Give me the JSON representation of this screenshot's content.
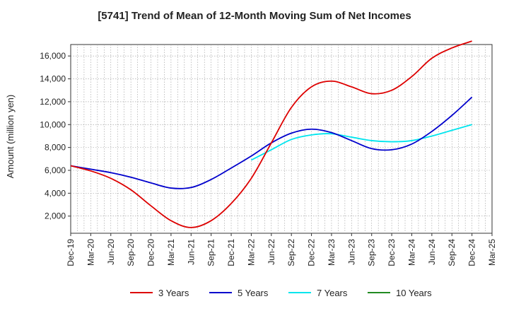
{
  "chart_data": {
    "type": "line",
    "title": "[5741]  Trend of Mean of 12-Month Moving Sum of Net Incomes",
    "xlabel": "",
    "ylabel": "Amount (million yen)",
    "ylim": [
      500,
      17000
    ],
    "yticks": [
      2000,
      4000,
      6000,
      8000,
      10000,
      12000,
      14000,
      16000
    ],
    "ytick_labels": [
      "2,000",
      "4,000",
      "6,000",
      "8,000",
      "10,000",
      "12,000",
      "14,000",
      "16,000"
    ],
    "categories": [
      "Dec-19",
      "Mar-20",
      "Jun-20",
      "Sep-20",
      "Dec-20",
      "Mar-21",
      "Jun-21",
      "Sep-21",
      "Dec-21",
      "Mar-22",
      "Jun-22",
      "Sep-22",
      "Dec-22",
      "Mar-23",
      "Jun-23",
      "Sep-23",
      "Dec-23",
      "Mar-24",
      "Jun-24",
      "Sep-24",
      "Dec-24",
      "Mar-25"
    ],
    "grid": true,
    "legend_position": "bottom",
    "series": [
      {
        "name": "3 Years",
        "color": "#dd0000",
        "values": [
          6400,
          5950,
          5300,
          4300,
          2900,
          1600,
          1000,
          1600,
          3100,
          5300,
          8400,
          11500,
          13300,
          13800,
          13300,
          12700,
          13000,
          14200,
          15800,
          16700,
          17300,
          null
        ]
      },
      {
        "name": "5 Years",
        "color": "#0000cc",
        "values": [
          6400,
          6100,
          5800,
          5400,
          4900,
          4450,
          4500,
          5200,
          6200,
          7250,
          8400,
          9250,
          9600,
          9300,
          8600,
          7900,
          7800,
          8300,
          9400,
          10800,
          12400,
          null
        ]
      },
      {
        "name": "7 Years",
        "color": "#00e5ee",
        "values": [
          null,
          null,
          null,
          null,
          null,
          null,
          null,
          null,
          null,
          6900,
          7800,
          8700,
          9100,
          9200,
          8900,
          8600,
          8500,
          8600,
          9000,
          9500,
          10000,
          null
        ]
      },
      {
        "name": "10 Years",
        "color": "#228b22",
        "values": [
          null,
          null,
          null,
          null,
          null,
          null,
          null,
          null,
          null,
          null,
          null,
          null,
          null,
          null,
          null,
          null,
          null,
          null,
          null,
          null,
          null,
          null
        ]
      }
    ]
  }
}
